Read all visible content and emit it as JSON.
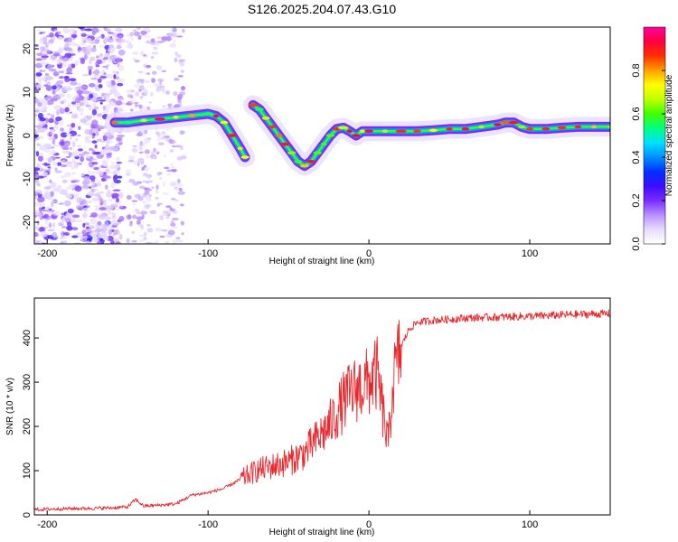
{
  "figure_title": "S126.2025.204.07.43.G10",
  "chart_data": [
    {
      "type": "heatmap",
      "title": "",
      "xlabel": "Height of straight line (km)",
      "ylabel": "Frequency (Hz)",
      "xlim": [
        -208,
        150
      ],
      "ylim": [
        -25,
        25
      ],
      "xticks": [
        -200,
        -100,
        0,
        100
      ],
      "yticks": [
        -20,
        -10,
        0,
        10,
        20
      ],
      "colorbar": {
        "label": "Normalized spectral amplitude",
        "range": [
          0,
          1
        ],
        "ticks": [
          0.0,
          0.2,
          0.4,
          0.6,
          0.8
        ],
        "colors": [
          "#ffffff",
          "#e8dcff",
          "#b890ff",
          "#7a2cff",
          "#3c0cff",
          "#0030ff",
          "#0090ff",
          "#00e0ff",
          "#00ff80",
          "#40ff00",
          "#c0ff00",
          "#ffff00",
          "#ffa000",
          "#ff3000",
          "#ff0040",
          "#ff00a0"
        ]
      },
      "ridge": {
        "x": [
          -158,
          -150,
          -140,
          -130,
          -120,
          -110,
          -100,
          -95,
          -90,
          -85,
          -80,
          -77
        ],
        "y": [
          3,
          3,
          3.5,
          3.8,
          4.2,
          4.6,
          5,
          4.5,
          3,
          0,
          -3,
          -5
        ]
      },
      "ridge_branch": {
        "x": [
          -72,
          -68,
          -64,
          -60,
          -56,
          -52,
          -48,
          -44,
          -40,
          -36,
          -32,
          -28,
          -24,
          -20,
          -16,
          -12,
          -8,
          -4,
          0,
          10,
          20,
          30,
          40,
          50,
          60,
          70,
          80,
          85,
          90,
          95,
          100,
          110,
          120,
          130,
          140,
          150
        ],
        "y": [
          7,
          6,
          4,
          2,
          0,
          -2,
          -4,
          -6,
          -7,
          -6,
          -4,
          -2,
          0,
          1.5,
          1.8,
          1,
          0,
          1,
          1,
          1,
          1,
          1,
          1.2,
          1.5,
          1.5,
          2,
          2.5,
          3,
          3,
          2,
          1.5,
          1.5,
          1.8,
          2,
          2,
          2
        ]
      }
    },
    {
      "type": "line",
      "title": "",
      "xlabel": "Height of straight line (km)",
      "ylabel": "SNR (10 * v/v)",
      "xlim": [
        -208,
        150
      ],
      "ylim": [
        0,
        490
      ],
      "xticks": [
        -200,
        -100,
        0,
        100
      ],
      "yticks": [
        0,
        100,
        200,
        300,
        400
      ],
      "series": [
        {
          "color": "#e8282c",
          "x": [
            -208,
            -190,
            -170,
            -160,
            -150,
            -145,
            -140,
            -130,
            -120,
            -110,
            -100,
            -90,
            -80,
            -70,
            -60,
            -50,
            -40,
            -30,
            -25,
            -20,
            -15,
            -10,
            -5,
            0,
            5,
            10,
            12,
            15,
            20,
            25,
            30,
            40,
            50,
            60,
            70,
            80,
            90,
            100,
            110,
            120,
            130,
            140,
            150
          ],
          "values": [
            12,
            14,
            15,
            16,
            18,
            35,
            20,
            22,
            25,
            45,
            50,
            60,
            80,
            100,
            110,
            120,
            140,
            180,
            200,
            230,
            260,
            280,
            290,
            300,
            320,
            200,
            160,
            300,
            380,
            420,
            435,
            440,
            442,
            445,
            446,
            447,
            448,
            449,
            450,
            452,
            453,
            454,
            455
          ]
        }
      ]
    }
  ]
}
